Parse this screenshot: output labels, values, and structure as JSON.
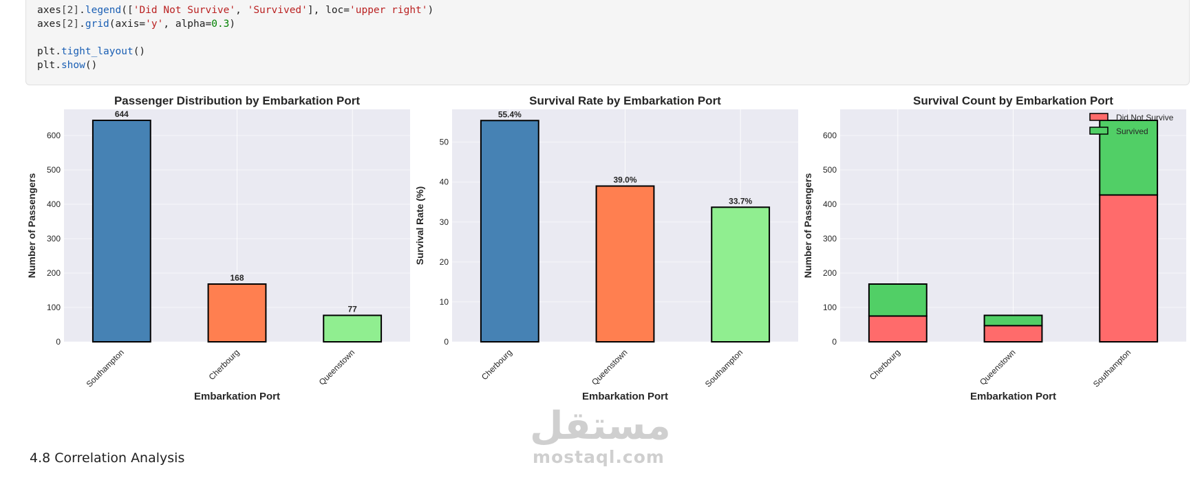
{
  "code_cell": {
    "line1_obj": "axes",
    "line1_idx": "[2]",
    "line1_fn": "legend",
    "line1_open": "([",
    "line1_s1": "'Did Not Survive'",
    "line1_sep": ", ",
    "line1_s2": "'Survived'",
    "line1_mid": "], loc=",
    "line1_s3": "'upper right'",
    "line1_close": ")",
    "line2_obj": "axes",
    "line2_idx": "[2]",
    "line2_fn": "grid",
    "line2_open": "(axis=",
    "line2_s1": "'y'",
    "line2_mid": ", alpha=",
    "line2_num": "0.3",
    "line2_close": ")",
    "line3_obj": "plt",
    "line3_fn": "tight_layout",
    "line3_close": "()",
    "line4_obj": "plt",
    "line4_fn": "show",
    "line4_close": "()"
  },
  "section_heading": "4.8 Correlation Analysis",
  "watermark": {
    "arabic": "مستقل",
    "latin": "mostaql.com"
  },
  "colors": {
    "plot_bg": "#eaeaf2",
    "grid": "#ffffff",
    "southampton": "#4682b4",
    "cherbourg": "#ff7f50",
    "queenstown": "#90ee90",
    "did_not_survive": "#ff6b6b",
    "survived": "#51cf66"
  },
  "chart_data": [
    {
      "type": "bar",
      "title": "Passenger Distribution by Embarkation Port",
      "xlabel": "Embarkation Port",
      "ylabel": "Number of Passengers",
      "categories": [
        "Southampton",
        "Cherbourg",
        "Queenstown"
      ],
      "values": [
        644,
        168,
        77
      ],
      "value_labels": [
        "644",
        "168",
        "77"
      ],
      "ylim": [
        0,
        676
      ],
      "yticks": [
        0,
        100,
        200,
        300,
        400,
        500,
        600
      ],
      "grid": true
    },
    {
      "type": "bar",
      "title": "Survival Rate by Embarkation Port",
      "xlabel": "Embarkation Port",
      "ylabel": "Survival Rate (%)",
      "categories": [
        "Cherbourg",
        "Queenstown",
        "Southampton"
      ],
      "values": [
        55.4,
        39.0,
        33.7
      ],
      "value_labels": [
        "55.4%",
        "39.0%",
        "33.7%"
      ],
      "ylim": [
        0,
        58.2
      ],
      "yticks": [
        0,
        10,
        20,
        30,
        40,
        50
      ],
      "grid": true
    },
    {
      "type": "bar",
      "stacked": true,
      "title": "Survival Count by Embarkation Port",
      "xlabel": "Embarkation Port",
      "ylabel": "Number of Passengers",
      "categories": [
        "Cherbourg",
        "Queenstown",
        "Southampton"
      ],
      "series": [
        {
          "name": "Did Not Survive",
          "values": [
            75,
            47,
            427
          ]
        },
        {
          "name": "Survived",
          "values": [
            93,
            30,
            217
          ]
        }
      ],
      "ylim": [
        0,
        676
      ],
      "yticks": [
        0,
        100,
        200,
        300,
        400,
        500,
        600
      ],
      "legend": "upper right",
      "grid": true
    }
  ]
}
